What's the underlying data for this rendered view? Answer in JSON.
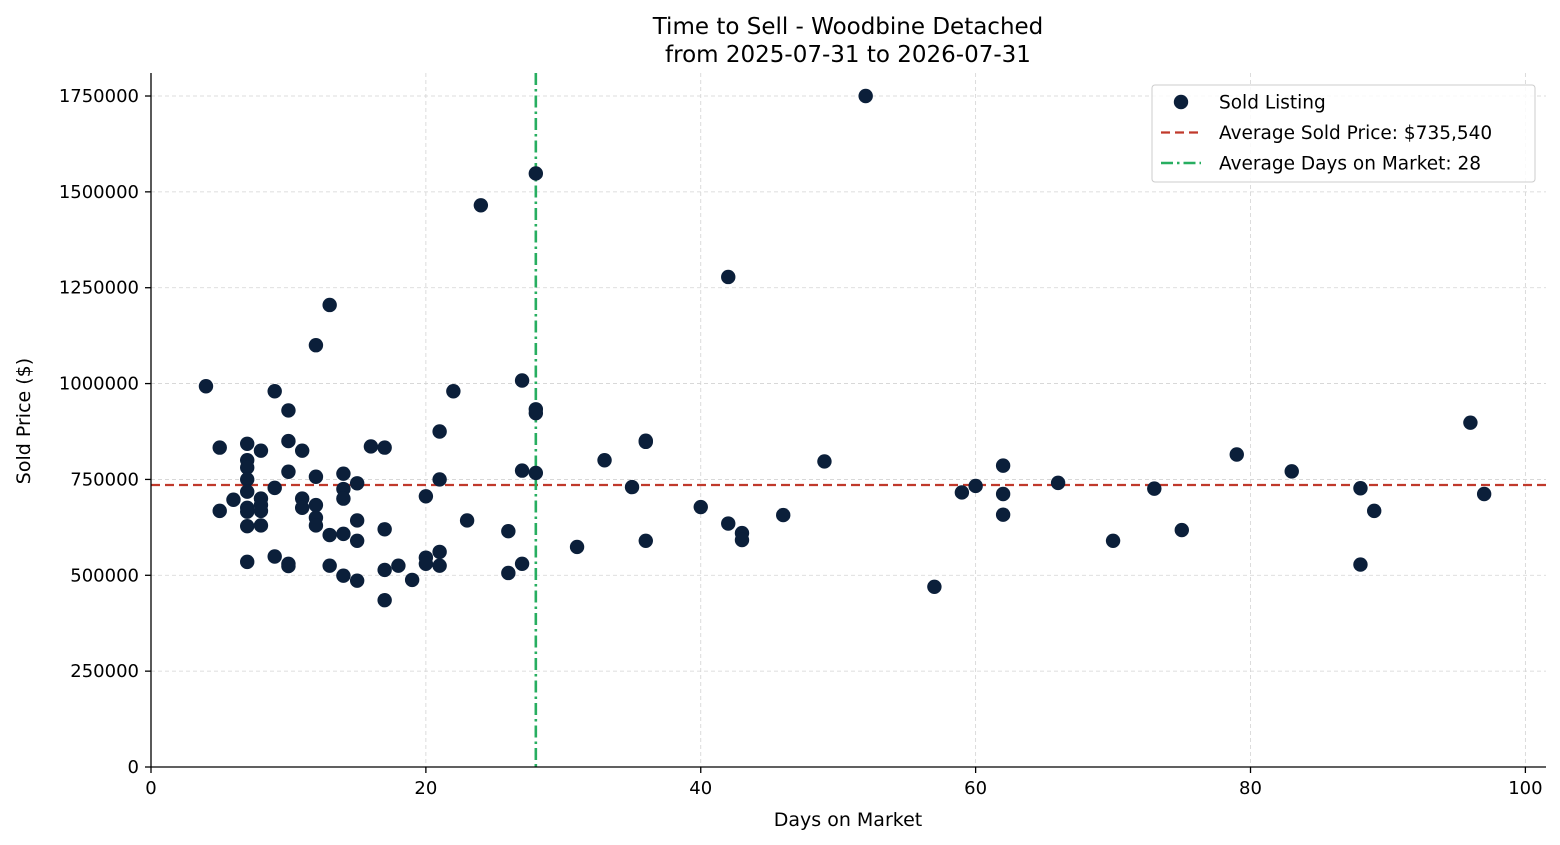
{
  "chart_data": {
    "type": "scatter",
    "title": "Time to Sell - Woodbine Detached",
    "subtitle": "from 2025-07-31 to 2026-07-31",
    "xlabel": "Days on Market",
    "ylabel": "Sold Price ($)",
    "xlim": [
      0,
      101.5
    ],
    "ylim": [
      0,
      1810000
    ],
    "xticks": [
      0,
      20,
      40,
      60,
      80,
      100
    ],
    "yticks": [
      0,
      250000,
      500000,
      750000,
      1000000,
      1250000,
      1500000,
      1750000
    ],
    "grid": true,
    "legend_position": "top-right",
    "colors": {
      "points": "#0b1f3a",
      "avg_price": "#c0392b",
      "avg_days": "#27ae60"
    },
    "legend": [
      {
        "label": "Sold Listing",
        "kind": "marker"
      },
      {
        "label": "Average Sold Price: $735,540",
        "kind": "dashed-line"
      },
      {
        "label": "Average Days on Market: 28",
        "kind": "dashdot-line"
      }
    ],
    "avg_price": 735540,
    "avg_days": 28,
    "series": [
      {
        "name": "Sold Listing",
        "points": [
          [
            4,
            993000
          ],
          [
            5,
            833000
          ],
          [
            5,
            668000
          ],
          [
            6,
            697000
          ],
          [
            7,
            843000
          ],
          [
            7,
            800000
          ],
          [
            7,
            781000
          ],
          [
            7,
            750000
          ],
          [
            7,
            718000
          ],
          [
            7,
            676000
          ],
          [
            7,
            666000
          ],
          [
            7,
            628000
          ],
          [
            7,
            535000
          ],
          [
            8,
            825000
          ],
          [
            8,
            700000
          ],
          [
            8,
            683000
          ],
          [
            8,
            668000
          ],
          [
            8,
            630000
          ],
          [
            9,
            980000
          ],
          [
            9,
            728000
          ],
          [
            9,
            549000
          ],
          [
            10,
            930000
          ],
          [
            10,
            850000
          ],
          [
            10,
            770000
          ],
          [
            10,
            530000
          ],
          [
            10,
            524000
          ],
          [
            11,
            825000
          ],
          [
            11,
            700000
          ],
          [
            11,
            676000
          ],
          [
            12,
            1100000
          ],
          [
            12,
            757000
          ],
          [
            12,
            683000
          ],
          [
            12,
            650000
          ],
          [
            12,
            630000
          ],
          [
            13,
            1205000
          ],
          [
            13,
            605000
          ],
          [
            13,
            525000
          ],
          [
            14,
            765000
          ],
          [
            14,
            725000
          ],
          [
            14,
            700000
          ],
          [
            14,
            608000
          ],
          [
            14,
            499000
          ],
          [
            15,
            740000
          ],
          [
            15,
            643000
          ],
          [
            15,
            590000
          ],
          [
            15,
            486000
          ],
          [
            16,
            836000
          ],
          [
            17,
            833000
          ],
          [
            17,
            620000
          ],
          [
            17,
            514000
          ],
          [
            17,
            435000
          ],
          [
            18,
            525000
          ],
          [
            19,
            488000
          ],
          [
            20,
            706000
          ],
          [
            20,
            546000
          ],
          [
            20,
            530000
          ],
          [
            21,
            875000
          ],
          [
            21,
            750000
          ],
          [
            21,
            561000
          ],
          [
            21,
            525000
          ],
          [
            22,
            980000
          ],
          [
            23,
            643000
          ],
          [
            24,
            1465000
          ],
          [
            26,
            615000
          ],
          [
            26,
            506000
          ],
          [
            27,
            1008000
          ],
          [
            27,
            773000
          ],
          [
            27,
            530000
          ],
          [
            28,
            1548000
          ],
          [
            28,
            933000
          ],
          [
            28,
            923000
          ],
          [
            28,
            767000
          ],
          [
            31,
            574000
          ],
          [
            33,
            800000
          ],
          [
            35,
            730000
          ],
          [
            36,
            851000
          ],
          [
            36,
            848000
          ],
          [
            36,
            590000
          ],
          [
            40,
            678000
          ],
          [
            42,
            1278000
          ],
          [
            42,
            635000
          ],
          [
            43,
            610000
          ],
          [
            43,
            592000
          ],
          [
            46,
            657000
          ],
          [
            49,
            797000
          ],
          [
            52,
            1750000
          ],
          [
            57,
            470000
          ],
          [
            59,
            716000
          ],
          [
            60,
            733000
          ],
          [
            62,
            786000
          ],
          [
            62,
            712000
          ],
          [
            62,
            658000
          ],
          [
            66,
            741000
          ],
          [
            70,
            590000
          ],
          [
            73,
            726000
          ],
          [
            75,
            618000
          ],
          [
            79,
            815000
          ],
          [
            83,
            771000
          ],
          [
            88,
            727000
          ],
          [
            88,
            528000
          ],
          [
            89,
            668000
          ],
          [
            96,
            898000
          ],
          [
            97,
            712000
          ]
        ]
      }
    ]
  }
}
